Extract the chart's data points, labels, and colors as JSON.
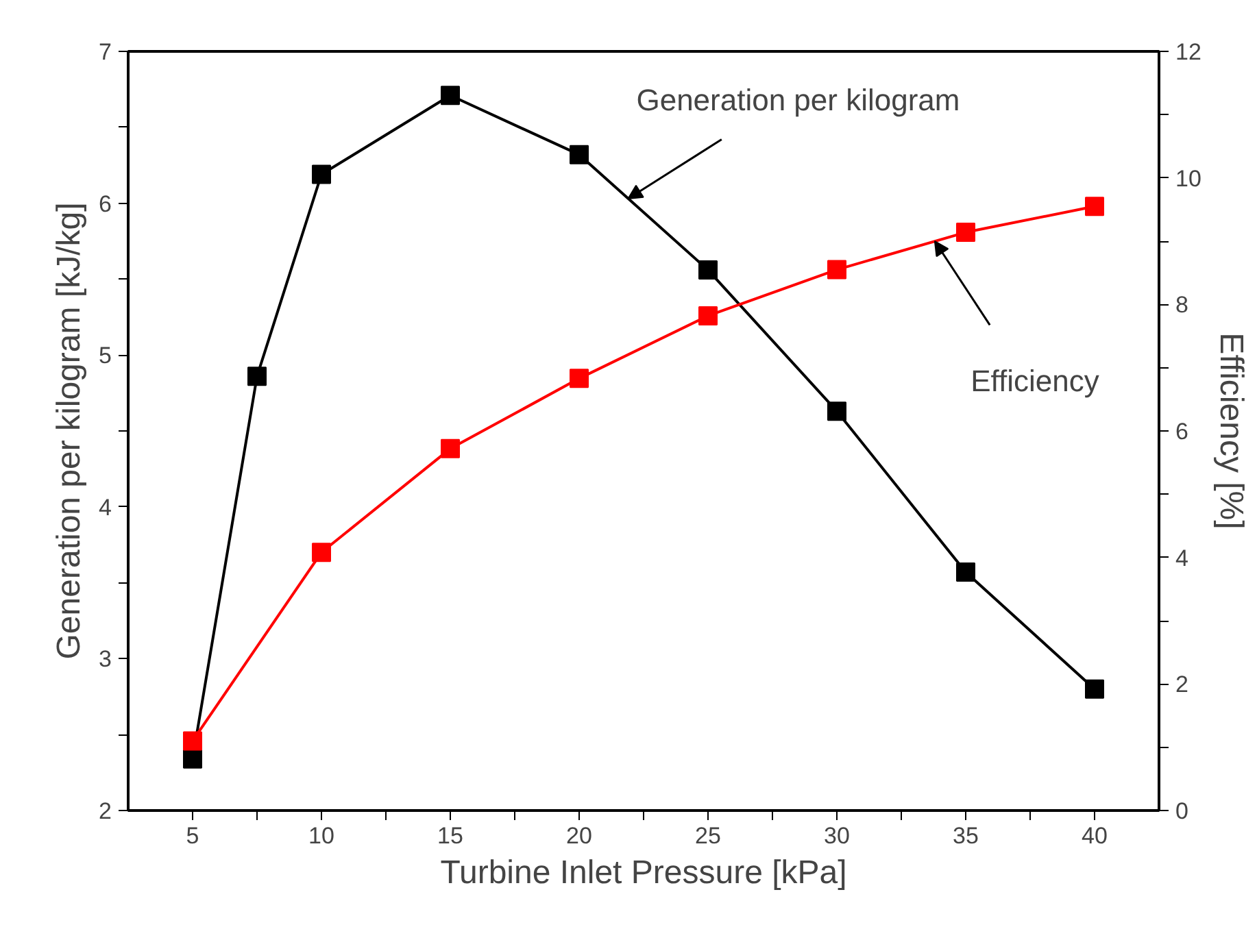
{
  "chart_data": {
    "type": "line",
    "xlabel": "Turbine Inlet Pressure [kPa]",
    "ylabel": "Generation per kilogram [kJ/kg]",
    "y2label": "Efficiency [%]",
    "xlim": [
      2.5,
      42.5
    ],
    "xticks": [
      5,
      {
        "value": 7.5,
        "label": null
      },
      10,
      {
        "value": 12.5,
        "label": null
      },
      15,
      {
        "value": 17.5,
        "label": null
      },
      20,
      {
        "value": 22.5,
        "label": null
      },
      25,
      {
        "value": 27.5,
        "label": null
      },
      30,
      {
        "value": 32.5,
        "label": null
      },
      35,
      {
        "value": 37.5,
        "label": null
      },
      40
    ],
    "ylim": [
      2,
      7
    ],
    "yticks": [
      2,
      {
        "value": 2.5,
        "label": null
      },
      3,
      {
        "value": 3.5,
        "label": null
      },
      4,
      {
        "value": 4.5,
        "label": null
      },
      5,
      {
        "value": 5.5,
        "label": null
      },
      6,
      {
        "value": 6.5,
        "label": null
      },
      7
    ],
    "y2lim": [
      0,
      12
    ],
    "y2ticks": [
      0,
      {
        "value": 1,
        "label": null
      },
      2,
      {
        "value": 3,
        "label": null
      },
      4,
      {
        "value": 5,
        "label": null
      },
      6,
      {
        "value": 7,
        "label": null
      },
      8,
      {
        "value": 9,
        "label": null
      },
      10,
      {
        "value": 11,
        "label": null
      },
      12
    ],
    "marker": "square",
    "line_style": "solid",
    "grid": false,
    "series": [
      {
        "color": "#000000",
        "x": [
          5,
          7.5,
          10,
          15,
          20,
          25,
          30,
          35,
          40
        ],
        "values": [
          2.34,
          4.86,
          6.19,
          6.71,
          6.32,
          5.56,
          4.63,
          3.57,
          2.8
        ]
      },
      {
        "color": "#ff0000",
        "axis": "y2",
        "x": [
          5,
          10,
          15,
          20,
          25,
          30,
          35,
          40
        ],
        "values": [
          1.1,
          4.08,
          5.72,
          6.83,
          7.82,
          8.55,
          9.14,
          9.55
        ]
      }
    ],
    "annotations": [
      {
        "text": "Generation per kilogram",
        "x": 21.9,
        "y": 6.03
      },
      {
        "text": "Efficiency",
        "x": 33.8,
        "y": 5.75
      }
    ]
  }
}
